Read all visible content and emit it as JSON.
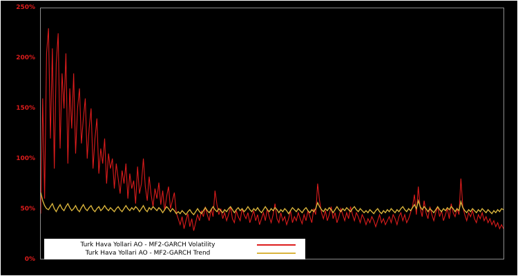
{
  "figure": {
    "background": "#000000",
    "outer_border_color": "#ffffff",
    "frame_color": "#8f8f8f"
  },
  "axes": {
    "y_ticks": [
      "0%",
      "50%",
      "100%",
      "150%",
      "200%",
      "250%"
    ],
    "y_tick_values": [
      0,
      50,
      100,
      150,
      200,
      250
    ],
    "tick_color": "#dd1c1c"
  },
  "legend": {
    "items": [
      {
        "label": "Turk Hava Yollari AO - MF2-GARCH Volatility",
        "color": "#dd1c1c"
      },
      {
        "label": "Turk Hava Yollari AO - MF2-GARCH Trend",
        "color": "#d9b43c"
      }
    ]
  },
  "chart_data": {
    "type": "line",
    "title": "",
    "xlabel": "",
    "ylabel": "",
    "ylim": [
      0,
      250
    ],
    "y_unit": "%",
    "grid": false,
    "legend_position": "bottom-left",
    "series": [
      {
        "name": "Turk Hava Yollari AO - MF2-GARCH Volatility",
        "color": "#dd1c1c",
        "values": [
          45,
          160,
          60,
          205,
          230,
          120,
          210,
          90,
          195,
          225,
          110,
          185,
          150,
          205,
          95,
          170,
          130,
          185,
          105,
          150,
          170,
          115,
          140,
          160,
          100,
          130,
          150,
          90,
          120,
          140,
          85,
          110,
          95,
          120,
          75,
          105,
          90,
          100,
          70,
          95,
          80,
          65,
          88,
          75,
          95,
          60,
          85,
          70,
          78,
          55,
          92,
          65,
          75,
          100,
          72,
          58,
          82,
          64,
          52,
          70,
          60,
          76,
          54,
          68,
          48,
          62,
          72,
          50,
          58,
          66,
          46,
          40,
          34,
          42,
          30,
          38,
          45,
          32,
          40,
          28,
          36,
          44,
          38,
          48,
          42,
          52,
          44,
          38,
          50,
          42,
          68,
          54,
          44,
          50,
          40,
          46,
          38,
          44,
          52,
          40,
          36,
          48,
          42,
          38,
          50,
          44,
          40,
          46,
          36,
          42,
          48,
          38,
          44,
          34,
          40,
          46,
          38,
          50,
          42,
          36,
          44,
          55,
          40,
          36,
          46,
          38,
          42,
          34,
          40,
          48,
          36,
          42,
          38,
          46,
          40,
          35,
          44,
          38,
          48,
          42,
          36,
          50,
          44,
          75,
          58,
          46,
          40,
          48,
          38,
          44,
          52,
          40,
          46,
          36,
          42,
          50,
          44,
          38,
          46,
          40,
          52,
          44,
          38,
          46,
          42,
          36,
          44,
          40,
          34,
          40,
          36,
          42,
          38,
          32,
          38,
          44,
          36,
          40,
          34,
          38,
          42,
          36,
          44,
          40,
          34,
          42,
          46,
          38,
          44,
          36,
          40,
          46,
          52,
          64,
          44,
          72,
          50,
          42,
          58,
          46,
          40,
          52,
          44,
          38,
          46,
          52,
          42,
          48,
          38,
          44,
          50,
          40,
          55,
          46,
          42,
          50,
          44,
          80,
          52,
          44,
          38,
          46,
          42,
          48,
          40,
          36,
          44,
          40,
          46,
          38,
          42,
          36,
          40,
          34,
          38,
          32,
          36,
          30,
          34,
          30
        ]
      },
      {
        "name": "Turk Hava Yollari AO - MF2-GARCH Trend",
        "color": "#d9b43c",
        "values": [
          66,
          58,
          53,
          50,
          49,
          52,
          55,
          50,
          47,
          51,
          54,
          50,
          48,
          52,
          55,
          51,
          48,
          50,
          53,
          49,
          47,
          51,
          54,
          50,
          48,
          51,
          53,
          49,
          47,
          50,
          52,
          48,
          50,
          53,
          50,
          48,
          51,
          49,
          47,
          50,
          52,
          49,
          47,
          50,
          53,
          50,
          48,
          51,
          49,
          52,
          50,
          47,
          50,
          53,
          49,
          47,
          51,
          49,
          52,
          50,
          48,
          51,
          49,
          46,
          49,
          52,
          50,
          47,
          50,
          48,
          45,
          47,
          45,
          48,
          46,
          44,
          47,
          49,
          46,
          44,
          47,
          50,
          47,
          45,
          48,
          51,
          48,
          46,
          49,
          52,
          49,
          47,
          50,
          48,
          46,
          49,
          47,
          50,
          52,
          49,
          46,
          49,
          51,
          48,
          50,
          47,
          49,
          52,
          49,
          47,
          50,
          48,
          51,
          48,
          46,
          49,
          52,
          49,
          47,
          50,
          48,
          51,
          49,
          46,
          49,
          47,
          50,
          48,
          45,
          48,
          51,
          49,
          47,
          50,
          48,
          46,
          49,
          51,
          48,
          46,
          49,
          47,
          50,
          56,
          52,
          49,
          47,
          50,
          48,
          51,
          49,
          46,
          49,
          52,
          49,
          47,
          50,
          48,
          51,
          49,
          47,
          50,
          52,
          49,
          47,
          50,
          48,
          46,
          48,
          46,
          49,
          47,
          45,
          48,
          50,
          47,
          45,
          48,
          46,
          49,
          47,
          50,
          48,
          46,
          49,
          47,
          50,
          52,
          49,
          47,
          50,
          48,
          51,
          54,
          50,
          58,
          52,
          49,
          52,
          50,
          47,
          50,
          48,
          46,
          49,
          52,
          49,
          47,
          50,
          48,
          51,
          49,
          52,
          50,
          47,
          50,
          48,
          57,
          51,
          48,
          46,
          49,
          47,
          50,
          48,
          46,
          49,
          47,
          50,
          48,
          46,
          49,
          47,
          45,
          48,
          46,
          49,
          47,
          50,
          49
        ]
      }
    ]
  }
}
